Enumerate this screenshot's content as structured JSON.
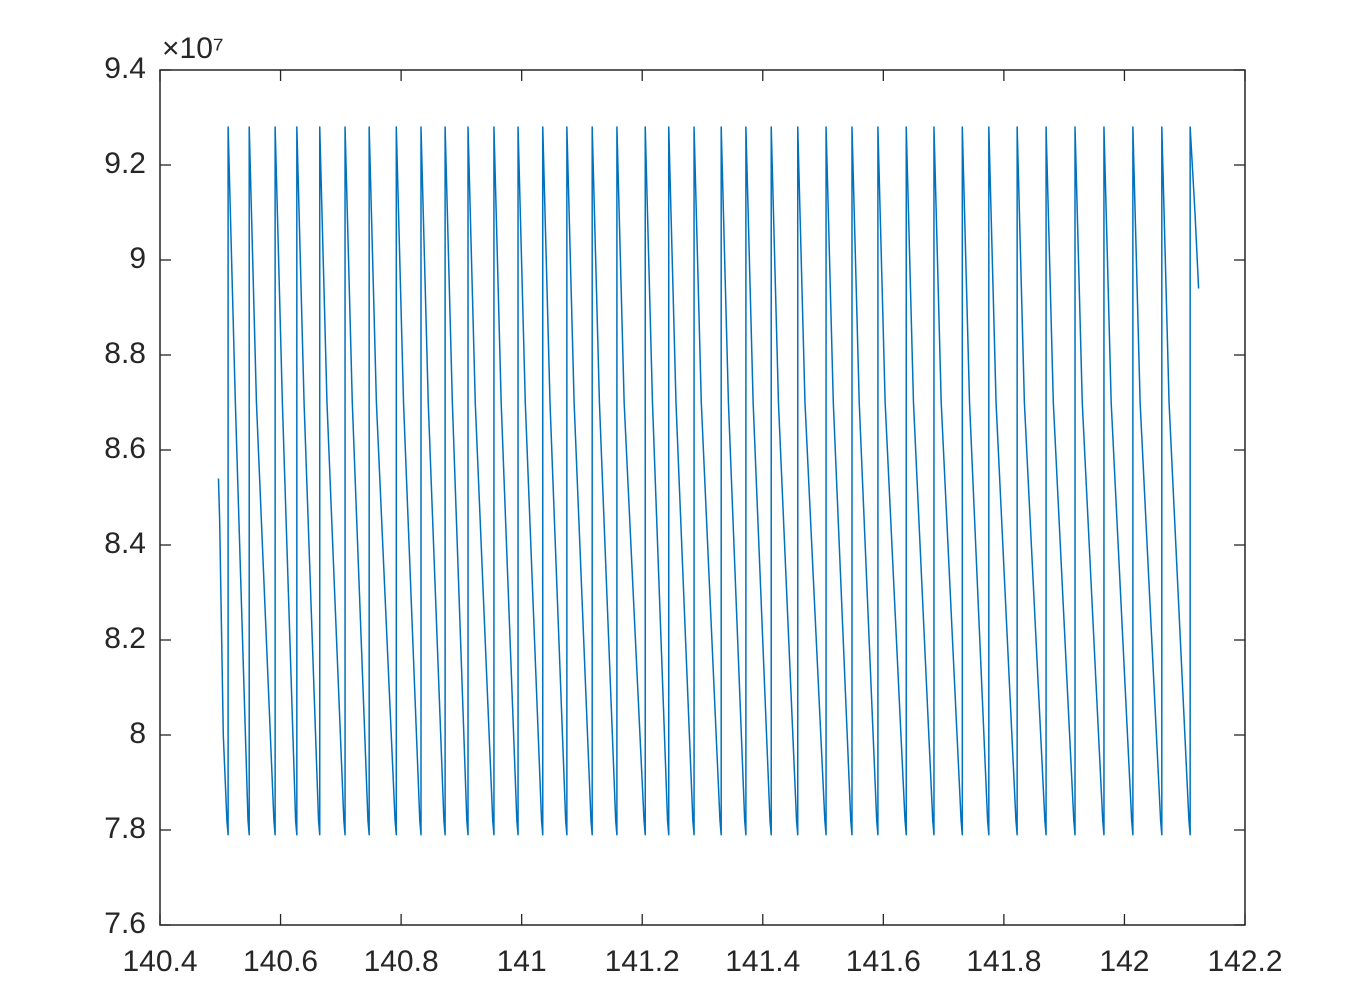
{
  "chart_data": {
    "type": "line",
    "y_multiplier": "×10⁷",
    "x": [
      140.497,
      140.499,
      140.505,
      140.511,
      140.513,
      140.513,
      140.525,
      140.546,
      140.548,
      140.548,
      140.56,
      140.589,
      140.591,
      140.591,
      140.603,
      140.625,
      140.627,
      140.627,
      140.639,
      140.663,
      140.665,
      140.665,
      140.677,
      140.705,
      140.707,
      140.707,
      140.719,
      140.745,
      140.747,
      140.747,
      140.759,
      140.79,
      140.792,
      140.792,
      140.804,
      140.831,
      140.833,
      140.833,
      140.845,
      140.871,
      140.873,
      140.873,
      140.885,
      140.909,
      140.911,
      140.911,
      140.923,
      140.952,
      140.954,
      140.954,
      140.966,
      140.992,
      140.994,
      140.994,
      141.006,
      141.033,
      141.035,
      141.035,
      141.047,
      141.073,
      141.075,
      141.075,
      141.087,
      141.115,
      141.117,
      141.117,
      141.129,
      141.156,
      141.158,
      141.158,
      141.17,
      141.203,
      141.205,
      141.205,
      141.217,
      141.242,
      141.244,
      141.244,
      141.256,
      141.284,
      141.286,
      141.286,
      141.298,
      141.329,
      141.331,
      141.331,
      141.343,
      141.37,
      141.372,
      141.372,
      141.384,
      141.412,
      141.414,
      141.414,
      141.426,
      141.456,
      141.458,
      141.458,
      141.47,
      141.503,
      141.505,
      141.505,
      141.517,
      141.546,
      141.548,
      141.548,
      141.56,
      141.589,
      141.591,
      141.591,
      141.603,
      141.636,
      141.638,
      141.638,
      141.65,
      141.682,
      141.684,
      141.684,
      141.696,
      141.729,
      141.731,
      141.731,
      141.743,
      141.773,
      141.775,
      141.775,
      141.787,
      141.82,
      141.822,
      141.822,
      141.834,
      141.868,
      141.87,
      141.87,
      141.882,
      141.916,
      141.918,
      141.918,
      141.93,
      141.964,
      141.966,
      141.966,
      141.978,
      142.012,
      142.014,
      142.014,
      142.026,
      142.06,
      142.062,
      142.062,
      142.074,
      142.107,
      142.109,
      142.109,
      142.117,
      142.123
    ],
    "series": [
      {
        "color": "#0072bd",
        "values": [
          8.54,
          8.45,
          8.0,
          7.82,
          7.79,
          9.28,
          8.7,
          7.82,
          7.79,
          9.28,
          8.7,
          7.82,
          7.79,
          9.28,
          8.7,
          7.82,
          7.79,
          9.28,
          8.7,
          7.82,
          7.79,
          9.28,
          8.7,
          7.82,
          7.79,
          9.28,
          8.7,
          7.82,
          7.79,
          9.28,
          8.7,
          7.82,
          7.79,
          9.28,
          8.7,
          7.82,
          7.79,
          9.28,
          8.7,
          7.82,
          7.79,
          9.28,
          8.7,
          7.82,
          7.79,
          9.28,
          8.7,
          7.82,
          7.79,
          9.28,
          8.7,
          7.82,
          7.79,
          9.28,
          8.7,
          7.82,
          7.79,
          9.28,
          8.7,
          7.82,
          7.79,
          9.28,
          8.7,
          7.82,
          7.79,
          9.28,
          8.7,
          7.82,
          7.79,
          9.28,
          8.7,
          7.82,
          7.79,
          9.28,
          8.7,
          7.82,
          7.79,
          9.28,
          8.7,
          7.82,
          7.79,
          9.28,
          8.7,
          7.82,
          7.79,
          9.28,
          8.7,
          7.82,
          7.79,
          9.28,
          8.7,
          7.82,
          7.79,
          9.28,
          8.7,
          7.82,
          7.79,
          9.28,
          8.7,
          7.82,
          7.79,
          9.28,
          8.7,
          7.82,
          7.79,
          9.28,
          8.7,
          7.82,
          7.79,
          9.28,
          8.7,
          7.82,
          7.79,
          9.28,
          8.7,
          7.82,
          7.79,
          9.28,
          8.7,
          7.82,
          7.79,
          9.28,
          8.7,
          7.82,
          7.79,
          9.28,
          8.7,
          7.82,
          7.79,
          9.28,
          8.7,
          7.82,
          7.79,
          9.28,
          8.7,
          7.82,
          7.79,
          9.28,
          8.7,
          7.82,
          7.79,
          9.28,
          8.7,
          7.82,
          7.79,
          9.28,
          8.7,
          7.82,
          7.79,
          9.28,
          8.7,
          7.82,
          7.79,
          9.28,
          9.1,
          8.94
        ]
      }
    ],
    "xlim": [
      140.4,
      142.2
    ],
    "xticks": [
      140.4,
      140.6,
      140.8,
      141,
      141.2,
      141.4,
      141.6,
      141.8,
      142,
      142.2
    ],
    "ylim": [
      7.6,
      9.4
    ],
    "yticks": [
      7.6,
      7.8,
      8,
      8.2,
      8.4,
      8.6,
      8.8,
      9,
      9.2,
      9.4
    ],
    "grid": false
  }
}
